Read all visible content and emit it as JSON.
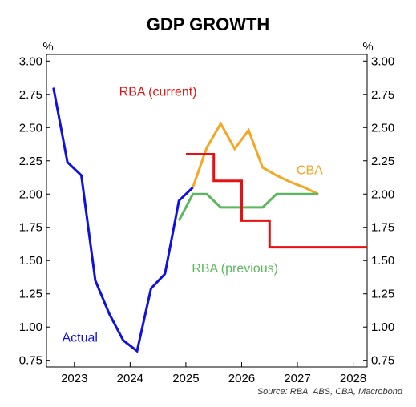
{
  "chart_data": {
    "type": "line",
    "title": "GDP GROWTH",
    "y_unit_left": "%",
    "y_unit_right": "%",
    "ylim": [
      0.7,
      3.05
    ],
    "y_ticks": [
      0.75,
      1.0,
      1.25,
      1.5,
      1.75,
      2.0,
      2.25,
      2.5,
      2.75,
      3.0
    ],
    "y_tick_labels": [
      "0.75",
      "1.00",
      "1.25",
      "1.50",
      "1.75",
      "2.00",
      "2.25",
      "2.50",
      "2.75",
      "3.00"
    ],
    "xlim": [
      2022.5,
      2028.25
    ],
    "x_tick_labels": [
      "2023",
      "2024",
      "2025",
      "2026",
      "2027",
      "2028"
    ],
    "x_tick_label_positions": [
      2023,
      2024,
      2025,
      2026,
      2027,
      2028
    ],
    "grid": false,
    "source": "Source: RBA, ABS, CBA, Macrobond",
    "series": [
      {
        "name": "Actual",
        "color": "#1010e0",
        "step": false,
        "points": [
          [
            2022.625,
            2.8
          ],
          [
            2022.875,
            2.24
          ],
          [
            2023.125,
            2.14
          ],
          [
            2023.375,
            1.35
          ],
          [
            2023.625,
            1.1
          ],
          [
            2023.875,
            0.9
          ],
          [
            2024.125,
            0.82
          ],
          [
            2024.375,
            1.29
          ],
          [
            2024.625,
            1.4
          ],
          [
            2024.875,
            1.95
          ],
          [
            2025.125,
            2.05
          ]
        ]
      },
      {
        "name": "CBA",
        "color": "#f5a623",
        "step": false,
        "points": [
          [
            2025.125,
            2.05
          ],
          [
            2025.375,
            2.35
          ],
          [
            2025.625,
            2.53
          ],
          [
            2025.875,
            2.34
          ],
          [
            2026.125,
            2.48
          ],
          [
            2026.375,
            2.2
          ],
          [
            2026.625,
            2.14
          ],
          [
            2026.875,
            2.09
          ],
          [
            2027.125,
            2.05
          ],
          [
            2027.375,
            2.0
          ]
        ]
      },
      {
        "name": "RBA (previous)",
        "color": "#5cb85c",
        "step": false,
        "points": [
          [
            2024.875,
            1.8
          ],
          [
            2025.125,
            2.0
          ],
          [
            2025.375,
            2.0
          ],
          [
            2025.625,
            1.9
          ],
          [
            2025.875,
            1.9
          ],
          [
            2026.125,
            1.9
          ],
          [
            2026.375,
            1.9
          ],
          [
            2026.625,
            2.0
          ],
          [
            2026.875,
            2.0
          ],
          [
            2027.125,
            2.0
          ],
          [
            2027.375,
            2.0
          ]
        ]
      },
      {
        "name": "RBA (current)",
        "color": "#e81010",
        "step": true,
        "points": [
          [
            2025.125,
            2.3
          ],
          [
            2025.375,
            2.3
          ],
          [
            2025.625,
            2.1
          ],
          [
            2025.875,
            2.1
          ],
          [
            2026.125,
            1.8
          ],
          [
            2026.375,
            1.8
          ],
          [
            2026.625,
            1.6
          ],
          [
            2026.875,
            1.6
          ],
          [
            2027.125,
            1.6
          ],
          [
            2027.375,
            1.6
          ],
          [
            2027.625,
            1.6
          ],
          [
            2027.875,
            1.6
          ],
          [
            2028.125,
            1.6
          ]
        ]
      }
    ],
    "annotations": [
      {
        "text": "RBA (current)",
        "color": "#e81010",
        "x": 2024.5,
        "y": 2.74
      },
      {
        "text": "CBA",
        "color": "#f5a623",
        "x": 2027.22,
        "y": 2.15
      },
      {
        "text": "RBA (previous)",
        "color": "#5cb85c",
        "x": 2025.88,
        "y": 1.41
      },
      {
        "text": "Actual",
        "color": "#1010e0",
        "x": 2023.1,
        "y": 0.89
      }
    ]
  }
}
